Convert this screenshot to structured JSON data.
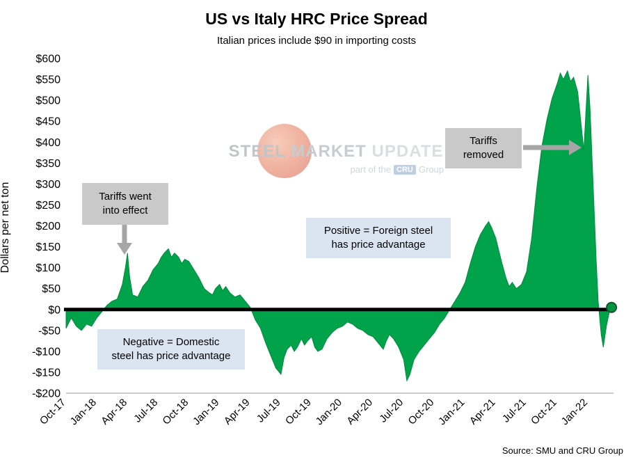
{
  "page": {
    "title": "US vs Italy HRC Price Spread",
    "subtitle": "Italian prices include $90 in importing costs",
    "source": "Source: SMU and CRU Group"
  },
  "watermark": {
    "word1": "STEEL",
    "word2": "MARKET",
    "word3": "UPDATE",
    "tagline_prefix": "part of the",
    "tagline_box": "CRU",
    "tagline_suffix": "Group"
  },
  "annotations": {
    "tariffs_effect": "Tariffs went\ninto effect",
    "tariffs_removed": "Tariffs\nremoved",
    "positive": "Positive = Foreign steel\nhas price advantage",
    "negative": "Negative = Domestic\nsteel has price advantage"
  },
  "chart_data": {
    "type": "area",
    "title": "US vs Italy HRC Price Spread",
    "subtitle": "Italian prices include $90 in importing costs",
    "ylabel": "Dollars per net ton",
    "xlabel": "",
    "ylim": [
      -200,
      600
    ],
    "ytick_step": 50,
    "y_tick_labels": [
      "$600",
      "$550",
      "$500",
      "$450",
      "$400",
      "$350",
      "$300",
      "$250",
      "$200",
      "$150",
      "$100",
      "$50",
      "$0",
      "-$50",
      "-$100",
      "-$150",
      "-$200"
    ],
    "x_tick_labels": [
      "Oct-17",
      "Jan-18",
      "Apr-18",
      "Jul-18",
      "Oct-18",
      "Jan-19",
      "Apr-19",
      "Jul-19",
      "Oct-19",
      "Jan-20",
      "Apr-20",
      "Jul-20",
      "Oct-20",
      "Jan-21",
      "Apr-21",
      "Jul-21",
      "Oct-21",
      "Jan-22"
    ],
    "x_tick_months": [
      0,
      3,
      6,
      9,
      12,
      15,
      18,
      21,
      24,
      27,
      30,
      33,
      36,
      39,
      42,
      45,
      48,
      51
    ],
    "x_range_months": [
      0,
      53.5
    ],
    "grid": false,
    "zero_line": true,
    "fill_color": "#00a24a",
    "stroke_color": "#008a3e",
    "zero_line_color": "#000000",
    "end_marker": {
      "month": 53.3,
      "value": 5,
      "fill": "#00953f",
      "stroke": "#14532d"
    },
    "series": [
      {
        "name": "US minus Italy HRC price spread ($/net ton)",
        "points": [
          [
            0,
            -45
          ],
          [
            0.5,
            -20
          ],
          [
            1,
            -40
          ],
          [
            1.5,
            -50
          ],
          [
            2,
            -35
          ],
          [
            2.5,
            -40
          ],
          [
            3,
            -20
          ],
          [
            3.5,
            -5
          ],
          [
            4,
            10
          ],
          [
            4.5,
            20
          ],
          [
            5,
            25
          ],
          [
            5.5,
            60
          ],
          [
            5.8,
            100
          ],
          [
            6,
            135
          ],
          [
            6.2,
            80
          ],
          [
            6.5,
            35
          ],
          [
            7,
            30
          ],
          [
            7.5,
            55
          ],
          [
            8,
            70
          ],
          [
            8.5,
            95
          ],
          [
            9,
            110
          ],
          [
            9.3,
            125
          ],
          [
            9.6,
            135
          ],
          [
            10,
            145
          ],
          [
            10.3,
            125
          ],
          [
            10.6,
            135
          ],
          [
            11,
            125
          ],
          [
            11.3,
            110
          ],
          [
            11.6,
            120
          ],
          [
            12,
            115
          ],
          [
            12.5,
            95
          ],
          [
            13,
            75
          ],
          [
            13.5,
            50
          ],
          [
            14,
            40
          ],
          [
            14.3,
            35
          ],
          [
            14.6,
            50
          ],
          [
            15,
            60
          ],
          [
            15.3,
            45
          ],
          [
            15.6,
            55
          ],
          [
            16,
            40
          ],
          [
            16.5,
            30
          ],
          [
            17,
            35
          ],
          [
            17.5,
            20
          ],
          [
            18,
            5
          ],
          [
            18.5,
            -25
          ],
          [
            19,
            -45
          ],
          [
            19.5,
            -80
          ],
          [
            20,
            -110
          ],
          [
            20.5,
            -140
          ],
          [
            21,
            -155
          ],
          [
            21.3,
            -115
          ],
          [
            21.6,
            -95
          ],
          [
            22,
            -85
          ],
          [
            22.3,
            -100
          ],
          [
            22.6,
            -90
          ],
          [
            23,
            -70
          ],
          [
            23.3,
            -85
          ],
          [
            23.6,
            -75
          ],
          [
            24,
            -65
          ],
          [
            24.3,
            -90
          ],
          [
            24.6,
            -100
          ],
          [
            25,
            -95
          ],
          [
            25.5,
            -70
          ],
          [
            26,
            -55
          ],
          [
            26.5,
            -45
          ],
          [
            27,
            -40
          ],
          [
            27.5,
            -30
          ],
          [
            28,
            -35
          ],
          [
            28.5,
            -45
          ],
          [
            29,
            -50
          ],
          [
            29.5,
            -60
          ],
          [
            30,
            -65
          ],
          [
            30.5,
            -80
          ],
          [
            31,
            -95
          ],
          [
            31.3,
            -75
          ],
          [
            31.6,
            -60
          ],
          [
            32,
            -70
          ],
          [
            32.5,
            -90
          ],
          [
            33,
            -120
          ],
          [
            33.3,
            -170
          ],
          [
            33.6,
            -155
          ],
          [
            34,
            -120
          ],
          [
            34.5,
            -100
          ],
          [
            35,
            -85
          ],
          [
            35.5,
            -70
          ],
          [
            36,
            -55
          ],
          [
            36.5,
            -35
          ],
          [
            37,
            -20
          ],
          [
            37.5,
            0
          ],
          [
            38,
            20
          ],
          [
            38.5,
            40
          ],
          [
            39,
            65
          ],
          [
            39.5,
            110
          ],
          [
            40,
            150
          ],
          [
            40.5,
            180
          ],
          [
            41,
            200
          ],
          [
            41.3,
            210
          ],
          [
            41.6,
            195
          ],
          [
            42,
            170
          ],
          [
            42.3,
            140
          ],
          [
            42.6,
            110
          ],
          [
            43,
            75
          ],
          [
            43.3,
            55
          ],
          [
            43.6,
            65
          ],
          [
            44,
            50
          ],
          [
            44.5,
            60
          ],
          [
            45,
            90
          ],
          [
            45.5,
            170
          ],
          [
            46,
            290
          ],
          [
            46.5,
            390
          ],
          [
            47,
            455
          ],
          [
            47.5,
            505
          ],
          [
            48,
            540
          ],
          [
            48.3,
            565
          ],
          [
            48.6,
            550
          ],
          [
            49,
            570
          ],
          [
            49.3,
            545
          ],
          [
            49.6,
            555
          ],
          [
            50,
            520
          ],
          [
            50.3,
            450
          ],
          [
            50.6,
            380
          ],
          [
            51,
            560
          ],
          [
            51.2,
            480
          ],
          [
            51.5,
            300
          ],
          [
            51.8,
            120
          ],
          [
            52,
            20
          ],
          [
            52.3,
            -60
          ],
          [
            52.5,
            -90
          ],
          [
            52.8,
            -40
          ],
          [
            53.1,
            -5
          ],
          [
            53.3,
            5
          ]
        ]
      }
    ]
  }
}
